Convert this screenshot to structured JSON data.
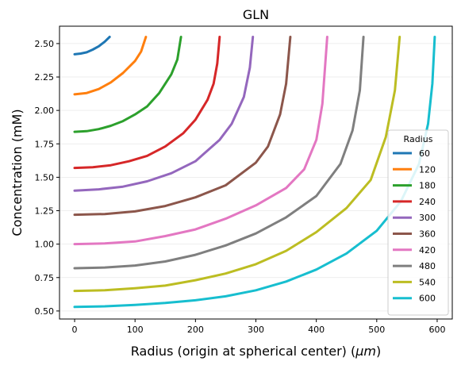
{
  "chart_data": {
    "type": "line",
    "title": "GLN",
    "xlabel_main": "Radius (origin at spherical center) (",
    "xlabel_unit": "μm",
    "xlabel_close": ")",
    "ylabel": "Concentration (mM)",
    "xlim": [
      -25,
      625
    ],
    "ylim": [
      0.44,
      2.63
    ],
    "x_ticks": [
      0,
      100,
      200,
      300,
      400,
      500,
      600
    ],
    "y_ticks": [
      0.5,
      0.75,
      1.0,
      1.25,
      1.5,
      1.75,
      2.0,
      2.25,
      2.5
    ],
    "y_tick_labels": [
      "0.50",
      "0.75",
      "1.00",
      "1.25",
      "1.50",
      "1.75",
      "2.00",
      "2.25",
      "2.50"
    ],
    "grid": "horizontal-faint",
    "legend": {
      "title": "Radius",
      "placement": "right"
    },
    "series": [
      {
        "name": "60",
        "color": "#1f77b4",
        "x": [
          0,
          10,
          20,
          30,
          40,
          50,
          58
        ],
        "y": [
          2.42,
          2.425,
          2.435,
          2.455,
          2.48,
          2.515,
          2.55
        ]
      },
      {
        "name": "120",
        "color": "#ff7f0e",
        "x": [
          0,
          20,
          40,
          60,
          80,
          100,
          110,
          118
        ],
        "y": [
          2.12,
          2.13,
          2.16,
          2.21,
          2.28,
          2.37,
          2.44,
          2.55
        ]
      },
      {
        "name": "180",
        "color": "#2ca02c",
        "x": [
          0,
          20,
          40,
          60,
          80,
          100,
          120,
          140,
          160,
          170,
          176
        ],
        "y": [
          1.84,
          1.845,
          1.86,
          1.885,
          1.92,
          1.97,
          2.03,
          2.13,
          2.27,
          2.38,
          2.55
        ]
      },
      {
        "name": "240",
        "color": "#d62728",
        "x": [
          0,
          30,
          60,
          90,
          120,
          150,
          180,
          200,
          220,
          230,
          236,
          240
        ],
        "y": [
          1.57,
          1.575,
          1.59,
          1.62,
          1.66,
          1.73,
          1.83,
          1.93,
          2.08,
          2.2,
          2.35,
          2.55
        ]
      },
      {
        "name": "300",
        "color": "#9467bd",
        "x": [
          0,
          40,
          80,
          120,
          160,
          200,
          240,
          260,
          280,
          290,
          295
        ],
        "y": [
          1.4,
          1.41,
          1.43,
          1.47,
          1.53,
          1.62,
          1.78,
          1.9,
          2.1,
          2.32,
          2.55
        ]
      },
      {
        "name": "360",
        "color": "#8c564b",
        "x": [
          0,
          50,
          100,
          150,
          200,
          250,
          300,
          320,
          340,
          350,
          357
        ],
        "y": [
          1.22,
          1.225,
          1.245,
          1.285,
          1.35,
          1.44,
          1.61,
          1.73,
          1.97,
          2.2,
          2.55
        ]
      },
      {
        "name": "420",
        "color": "#e377c2",
        "x": [
          0,
          50,
          100,
          150,
          200,
          250,
          300,
          350,
          380,
          400,
          410,
          418
        ],
        "y": [
          1.0,
          1.005,
          1.02,
          1.06,
          1.11,
          1.19,
          1.29,
          1.42,
          1.56,
          1.78,
          2.05,
          2.55
        ]
      },
      {
        "name": "480",
        "color": "#7f7f7f",
        "x": [
          0,
          50,
          100,
          150,
          200,
          250,
          300,
          350,
          400,
          440,
          460,
          472,
          478
        ],
        "y": [
          0.82,
          0.825,
          0.84,
          0.87,
          0.92,
          0.99,
          1.08,
          1.2,
          1.36,
          1.6,
          1.85,
          2.15,
          2.55
        ]
      },
      {
        "name": "540",
        "color": "#bcbd22",
        "x": [
          0,
          50,
          100,
          150,
          200,
          250,
          300,
          350,
          400,
          450,
          490,
          515,
          530,
          538
        ],
        "y": [
          0.65,
          0.655,
          0.67,
          0.69,
          0.73,
          0.78,
          0.85,
          0.95,
          1.09,
          1.27,
          1.48,
          1.8,
          2.15,
          2.55
        ]
      },
      {
        "name": "600",
        "color": "#17becf",
        "x": [
          0,
          50,
          100,
          150,
          200,
          250,
          300,
          350,
          400,
          450,
          500,
          540,
          570,
          585,
          592,
          596
        ],
        "y": [
          0.53,
          0.535,
          0.545,
          0.56,
          0.58,
          0.61,
          0.655,
          0.72,
          0.81,
          0.93,
          1.1,
          1.32,
          1.6,
          1.9,
          2.2,
          2.55
        ]
      }
    ]
  }
}
